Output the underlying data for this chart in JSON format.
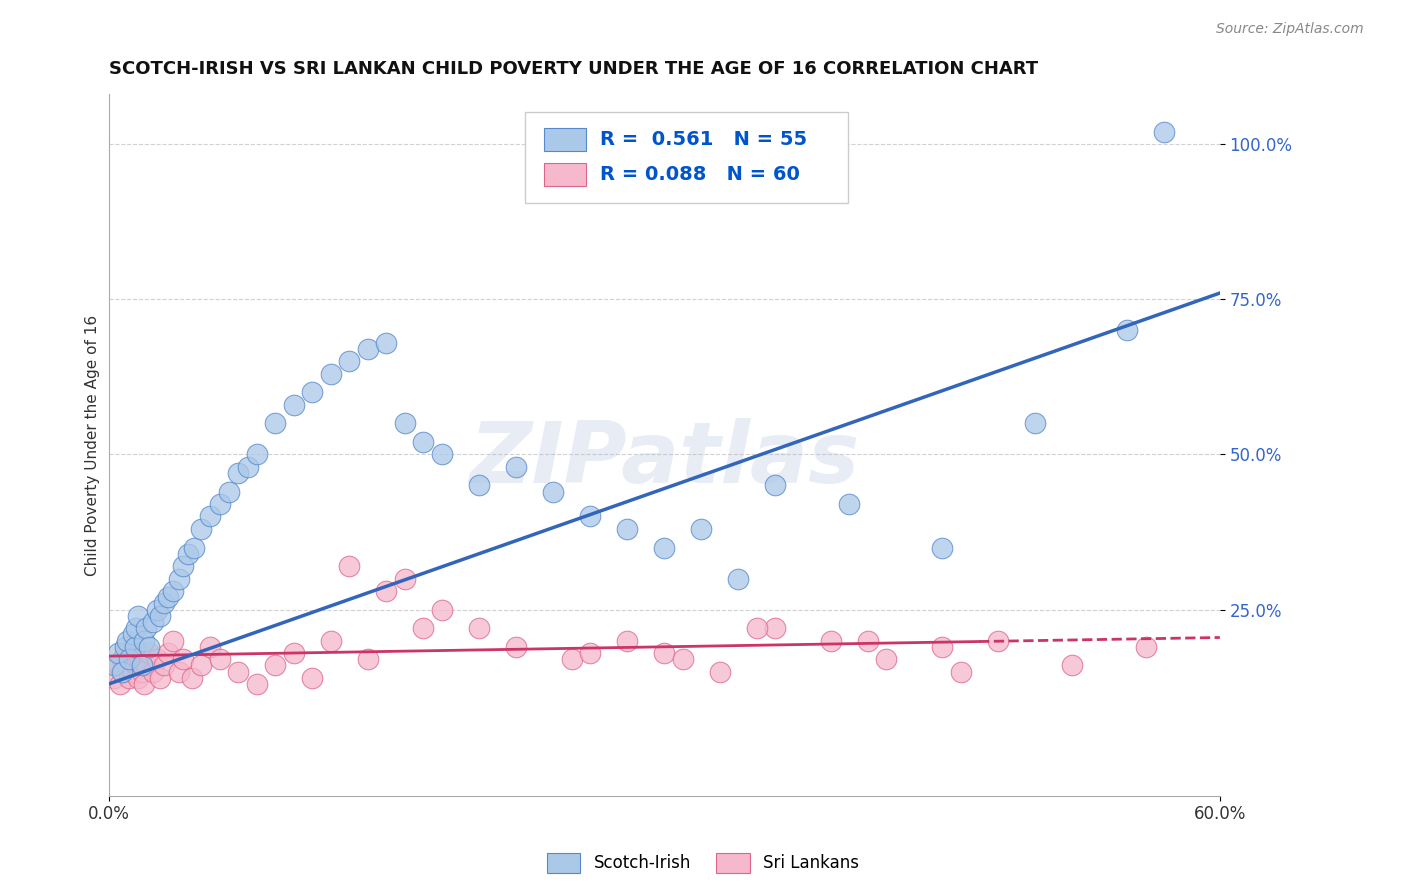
{
  "title": "SCOTCH-IRISH VS SRI LANKAN CHILD POVERTY UNDER THE AGE OF 16 CORRELATION CHART",
  "source": "Source: ZipAtlas.com",
  "ylabel": "Child Poverty Under the Age of 16",
  "xlim": [
    0.0,
    0.6
  ],
  "ylim": [
    -0.05,
    1.08
  ],
  "xticks": [
    0.0,
    0.6
  ],
  "xticklabels": [
    "0.0%",
    "60.0%"
  ],
  "ytick_positions": [
    0.25,
    0.5,
    0.75,
    1.0
  ],
  "ytick_labels": [
    "25.0%",
    "50.0%",
    "75.0%",
    "100.0%"
  ],
  "background_color": "#ffffff",
  "grid_color": "#cccccc",
  "watermark": "ZIPatlas",
  "series1_name": "Scotch-Irish",
  "series1_color": "#aac8e8",
  "series1_edge_color": "#5588cc",
  "series1_line_color": "#3366bb",
  "series1_R": 0.561,
  "series1_N": 55,
  "series2_name": "Sri Lankans",
  "series2_color": "#f5b8cc",
  "series2_edge_color": "#dd6688",
  "series2_line_color": "#cc3366",
  "series2_R": 0.088,
  "series2_N": 60,
  "si_x": [
    0.003,
    0.005,
    0.007,
    0.009,
    0.01,
    0.011,
    0.013,
    0.014,
    0.015,
    0.016,
    0.018,
    0.019,
    0.02,
    0.022,
    0.024,
    0.026,
    0.028,
    0.03,
    0.032,
    0.035,
    0.038,
    0.04,
    0.043,
    0.046,
    0.05,
    0.055,
    0.06,
    0.065,
    0.07,
    0.075,
    0.08,
    0.09,
    0.1,
    0.11,
    0.12,
    0.13,
    0.14,
    0.15,
    0.16,
    0.17,
    0.18,
    0.2,
    0.22,
    0.24,
    0.26,
    0.28,
    0.3,
    0.32,
    0.34,
    0.36,
    0.4,
    0.45,
    0.5,
    0.55,
    0.57
  ],
  "si_y": [
    0.16,
    0.18,
    0.15,
    0.19,
    0.2,
    0.17,
    0.21,
    0.19,
    0.22,
    0.24,
    0.16,
    0.2,
    0.22,
    0.19,
    0.23,
    0.25,
    0.24,
    0.26,
    0.27,
    0.28,
    0.3,
    0.32,
    0.34,
    0.35,
    0.38,
    0.4,
    0.42,
    0.44,
    0.47,
    0.48,
    0.5,
    0.55,
    0.58,
    0.6,
    0.63,
    0.65,
    0.67,
    0.68,
    0.55,
    0.52,
    0.5,
    0.45,
    0.48,
    0.44,
    0.4,
    0.38,
    0.35,
    0.38,
    0.3,
    0.45,
    0.42,
    0.35,
    0.55,
    0.7,
    1.02
  ],
  "sl_x": [
    0.003,
    0.005,
    0.006,
    0.007,
    0.008,
    0.009,
    0.01,
    0.011,
    0.012,
    0.013,
    0.014,
    0.015,
    0.016,
    0.017,
    0.018,
    0.019,
    0.02,
    0.022,
    0.024,
    0.026,
    0.028,
    0.03,
    0.032,
    0.035,
    0.038,
    0.04,
    0.045,
    0.05,
    0.055,
    0.06,
    0.07,
    0.08,
    0.09,
    0.1,
    0.11,
    0.12,
    0.14,
    0.16,
    0.18,
    0.2,
    0.22,
    0.25,
    0.28,
    0.3,
    0.33,
    0.36,
    0.39,
    0.42,
    0.45,
    0.48,
    0.13,
    0.15,
    0.17,
    0.26,
    0.31,
    0.35,
    0.41,
    0.46,
    0.52,
    0.56
  ],
  "sl_y": [
    0.14,
    0.16,
    0.13,
    0.17,
    0.15,
    0.18,
    0.16,
    0.14,
    0.17,
    0.15,
    0.18,
    0.16,
    0.14,
    0.17,
    0.15,
    0.13,
    0.16,
    0.18,
    0.15,
    0.17,
    0.14,
    0.16,
    0.18,
    0.2,
    0.15,
    0.17,
    0.14,
    0.16,
    0.19,
    0.17,
    0.15,
    0.13,
    0.16,
    0.18,
    0.14,
    0.2,
    0.17,
    0.3,
    0.25,
    0.22,
    0.19,
    0.17,
    0.2,
    0.18,
    0.15,
    0.22,
    0.2,
    0.17,
    0.19,
    0.2,
    0.32,
    0.28,
    0.22,
    0.18,
    0.17,
    0.22,
    0.2,
    0.15,
    0.16,
    0.19
  ],
  "legend_color": "#0055cc"
}
